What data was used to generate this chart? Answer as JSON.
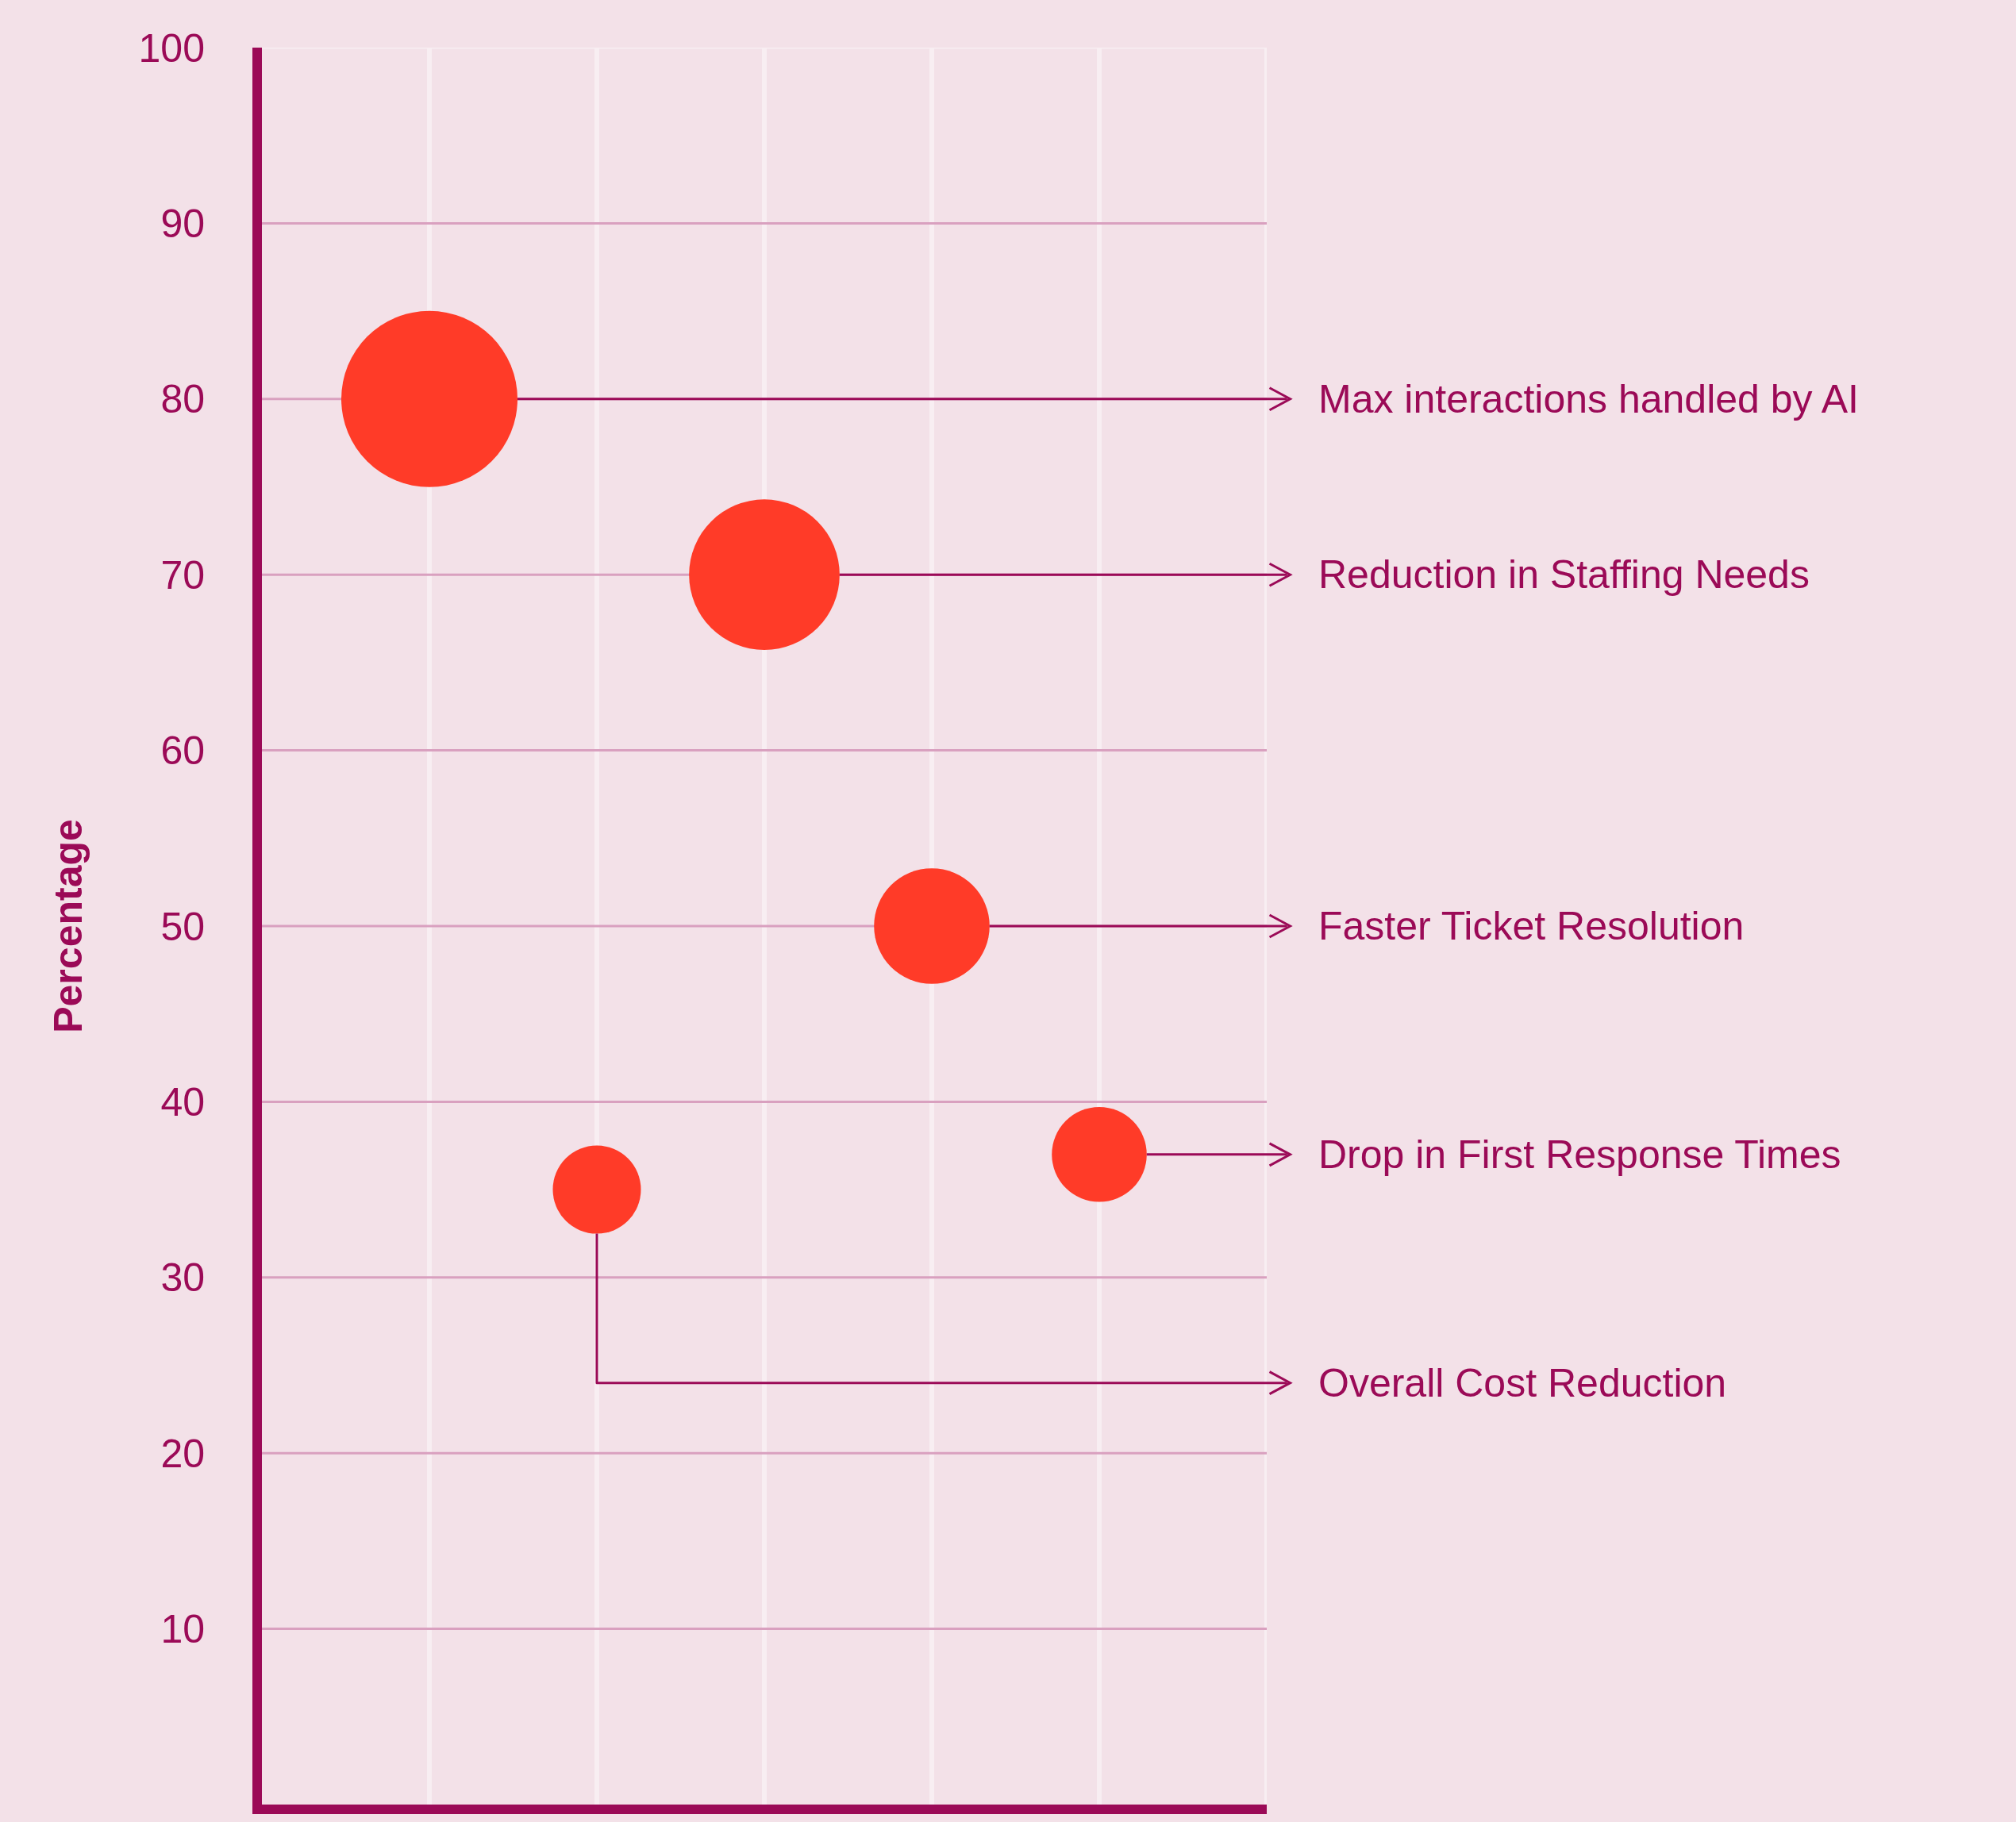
{
  "chart_data": {
    "type": "bubble",
    "ylabel": "Percentage",
    "categories": [
      null,
      null,
      null,
      null,
      null
    ],
    "series": [
      {
        "color": "#ff3b28",
        "values": [
          80,
          35,
          70,
          50,
          37
        ],
        "sizes": [
          1,
          0.25,
          0.73,
          0.43,
          0.29
        ]
      }
    ],
    "ylim": [
      0,
      100
    ],
    "yticks": [
      10,
      20,
      30,
      40,
      50,
      60,
      70,
      80,
      90,
      100
    ],
    "grid": true,
    "tick_labels": "y",
    "annotations": [
      "Max interactions handled by AI",
      "Overall Cost Reduction",
      "Reduction in Staffing Needs",
      "Faster Ticket Resolution",
      "Drop in First Response Times"
    ]
  }
}
